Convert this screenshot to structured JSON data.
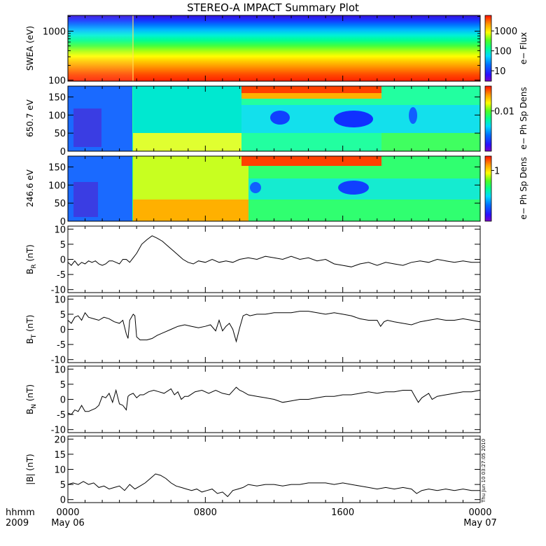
{
  "title": "STEREO-A IMPACT Summary Plot",
  "stamp": "Thu Jun 10 03:27:05 2010",
  "time_axis": {
    "label_line1": "hhmm",
    "label_line2": "2009",
    "ticks": [
      {
        "hour": 0,
        "label": "0000",
        "date": "May 06"
      },
      {
        "hour": 8,
        "label": "0800",
        "date": ""
      },
      {
        "hour": 16,
        "label": "1600",
        "date": ""
      },
      {
        "hour": 24,
        "label": "0000",
        "date": "May 07"
      }
    ],
    "range_hours": [
      0,
      24
    ]
  },
  "chart_data": [
    {
      "type": "heatmap",
      "name": "swea-spectrogram",
      "ylabel": "SWEA (eV)",
      "ylog": true,
      "ylim": [
        95,
        2100
      ],
      "yticks": [
        {
          "v": 100,
          "t": "100"
        },
        {
          "v": 1000,
          "t": "1000"
        }
      ],
      "colorbar": {
        "label": "e− Flux",
        "log": true,
        "range": [
          3,
          6000
        ],
        "ticks": [
          {
            "v": 10,
            "t": "10"
          },
          {
            "v": 100,
            "t": "100"
          },
          {
            "v": 1000,
            "t": "1000"
          }
        ]
      },
      "bands_bottom_to_top": [
        "#ff3000",
        "#ff5000",
        "#ff8000",
        "#ffb000",
        "#ffe000",
        "#d8ff00",
        "#90ff10",
        "#40ff40",
        "#00ff70",
        "#00ffb0",
        "#00e8e8",
        "#00c0ff",
        "#0090ff",
        "#0050ff",
        "#1010ff",
        "#3000e0"
      ]
    },
    {
      "type": "heatmap",
      "name": "pad-650",
      "ylabel": "650.7 eV",
      "ylim": [
        0,
        180
      ],
      "yticks": [
        {
          "v": 0,
          "t": "0"
        },
        {
          "v": 50,
          "t": "50"
        },
        {
          "v": 100,
          "t": "100"
        },
        {
          "v": 150,
          "t": "150"
        }
      ],
      "colorbar": {
        "label": "e− Ph Sp Dens",
        "log": true,
        "ticks": [
          {
            "v": 0.62,
            "t": "0.01"
          }
        ]
      }
    },
    {
      "type": "heatmap",
      "name": "pad-246",
      "ylabel": "246.6 eV",
      "ylim": [
        0,
        180
      ],
      "yticks": [
        {
          "v": 0,
          "t": "0"
        },
        {
          "v": 50,
          "t": "50"
        },
        {
          "v": 100,
          "t": "100"
        },
        {
          "v": 150,
          "t": "150"
        }
      ],
      "colorbar": {
        "label": "e− Ph Sp Dens",
        "log": true,
        "ticks": [
          {
            "v": 0.78,
            "t": "1"
          }
        ]
      }
    },
    {
      "type": "line",
      "name": "br",
      "ylabel": "B",
      "ylabel_sub": "R",
      "ylabel_unit": "(nT)",
      "ylim": [
        -11,
        11
      ],
      "yticks": [
        -10,
        -5,
        0,
        5,
        10
      ],
      "x_hours": [
        0,
        0.2,
        0.4,
        0.6,
        0.8,
        1.0,
        1.2,
        1.4,
        1.6,
        1.8,
        2.0,
        2.2,
        2.4,
        2.6,
        2.8,
        3.0,
        3.2,
        3.4,
        3.6,
        3.8,
        4.0,
        4.3,
        4.6,
        4.9,
        5.2,
        5.5,
        5.8,
        6.1,
        6.4,
        6.7,
        7.0,
        7.3,
        7.6,
        8.0,
        8.4,
        8.8,
        9.2,
        9.6,
        10.0,
        10.5,
        11.0,
        11.5,
        12.0,
        12.5,
        13.0,
        13.5,
        14.0,
        14.5,
        15.0,
        15.5,
        16.0,
        16.5,
        17.0,
        17.5,
        18.0,
        18.5,
        19.0,
        19.5,
        20.0,
        20.5,
        21.0,
        21.5,
        22.0,
        22.5,
        23.0,
        23.5,
        24.0
      ],
      "values": [
        -1.0,
        -2.0,
        -0.5,
        -2.0,
        -1.0,
        -1.5,
        -0.5,
        -1.0,
        -0.5,
        -1.5,
        -2.0,
        -1.5,
        -0.5,
        -0.5,
        -1.0,
        -1.5,
        0.0,
        0.0,
        -1.0,
        0.5,
        2.0,
        5.0,
        6.5,
        7.8,
        7.0,
        6.0,
        4.5,
        3.0,
        1.5,
        0.0,
        -1.0,
        -1.5,
        -0.5,
        -1.0,
        0.0,
        -1.0,
        -0.5,
        -1.0,
        0.0,
        0.5,
        0.0,
        1.0,
        0.5,
        0.0,
        1.0,
        0.0,
        0.5,
        -0.5,
        0.0,
        -1.5,
        -2.0,
        -2.5,
        -1.5,
        -1.0,
        -2.0,
        -1.0,
        -1.5,
        -2.0,
        -1.0,
        -0.5,
        -1.0,
        0.0,
        -0.5,
        -1.0,
        -0.5,
        -1.0,
        -1.0
      ]
    },
    {
      "type": "line",
      "name": "bt",
      "ylabel": "B",
      "ylabel_sub": "T",
      "ylabel_unit": "(nT)",
      "ylim": [
        -11,
        11
      ],
      "yticks": [
        -10,
        -5,
        0,
        5,
        10
      ],
      "x_hours": [
        0,
        0.2,
        0.4,
        0.6,
        0.8,
        1.0,
        1.2,
        1.5,
        1.8,
        2.1,
        2.4,
        2.7,
        3.0,
        3.2,
        3.4,
        3.5,
        3.6,
        3.8,
        3.9,
        4.0,
        4.2,
        4.4,
        4.6,
        4.9,
        5.2,
        5.6,
        6.0,
        6.4,
        6.8,
        7.2,
        7.6,
        8.0,
        8.3,
        8.6,
        8.8,
        9.0,
        9.2,
        9.4,
        9.6,
        9.8,
        10.0,
        10.2,
        10.4,
        10.6,
        11.0,
        11.5,
        12.0,
        12.5,
        13.0,
        13.5,
        14.0,
        14.5,
        15.0,
        15.5,
        16.0,
        16.5,
        17.0,
        17.5,
        18.0,
        18.2,
        18.4,
        18.6,
        19.0,
        19.5,
        20.0,
        20.5,
        21.0,
        21.5,
        22.0,
        22.5,
        23.0,
        23.5,
        24.0
      ],
      "values": [
        3.0,
        2.0,
        4.0,
        4.5,
        3.0,
        5.5,
        4.0,
        3.5,
        3.0,
        4.0,
        3.5,
        2.5,
        2.0,
        3.0,
        -1.5,
        -3.0,
        3.0,
        5.0,
        4.5,
        -2.5,
        -3.5,
        -3.5,
        -3.5,
        -3.0,
        -2.0,
        -1.0,
        0.0,
        1.0,
        1.5,
        1.0,
        0.5,
        1.0,
        1.5,
        -0.5,
        3.0,
        -0.5,
        1.0,
        2.0,
        0.0,
        -4.0,
        0.5,
        4.5,
        5.0,
        4.5,
        5.0,
        5.0,
        5.5,
        5.5,
        5.5,
        6.0,
        6.0,
        5.5,
        5.0,
        5.5,
        5.0,
        4.5,
        3.5,
        3.0,
        3.0,
        1.0,
        2.5,
        3.0,
        2.5,
        2.0,
        1.5,
        2.5,
        3.0,
        3.5,
        3.0,
        3.0,
        3.5,
        3.0,
        2.5
      ]
    },
    {
      "type": "line",
      "name": "bn",
      "ylabel": "B",
      "ylabel_sub": "N",
      "ylabel_unit": "(nT)",
      "ylim": [
        -11,
        11
      ],
      "yticks": [
        -10,
        -5,
        0,
        5,
        10
      ],
      "x_hours": [
        0,
        0.2,
        0.4,
        0.6,
        0.8,
        1.0,
        1.2,
        1.4,
        1.6,
        1.8,
        2.0,
        2.2,
        2.4,
        2.6,
        2.8,
        3.0,
        3.2,
        3.4,
        3.5,
        3.6,
        3.8,
        4.0,
        4.2,
        4.4,
        4.7,
        5.0,
        5.3,
        5.6,
        6.0,
        6.2,
        6.4,
        6.6,
        6.8,
        7.0,
        7.4,
        7.8,
        8.2,
        8.6,
        9.0,
        9.4,
        9.8,
        10.0,
        10.2,
        10.5,
        11.0,
        11.5,
        12.0,
        12.5,
        13.0,
        13.5,
        14.0,
        14.5,
        15.0,
        15.5,
        16.0,
        16.5,
        17.0,
        17.5,
        18.0,
        18.5,
        19.0,
        19.5,
        20.0,
        20.2,
        20.4,
        20.6,
        21.0,
        21.2,
        21.5,
        22.0,
        22.5,
        23.0,
        23.5,
        24.0
      ],
      "values": [
        -4.5,
        -5.0,
        -3.5,
        -4.0,
        -2.0,
        -4.0,
        -4.0,
        -3.5,
        -3.0,
        -2.0,
        1.0,
        0.5,
        2.0,
        -1.0,
        3.0,
        -1.5,
        -2.0,
        -3.5,
        1.0,
        1.5,
        2.0,
        0.5,
        1.5,
        1.5,
        2.5,
        3.0,
        2.5,
        2.0,
        3.5,
        1.5,
        2.5,
        0.0,
        1.0,
        1.0,
        2.5,
        3.0,
        2.0,
        3.0,
        2.0,
        1.5,
        4.0,
        3.0,
        2.5,
        1.5,
        1.0,
        0.5,
        0.0,
        -1.0,
        -0.5,
        0.0,
        0.0,
        0.5,
        1.0,
        1.0,
        1.5,
        1.5,
        2.0,
        2.5,
        2.0,
        2.5,
        2.5,
        3.0,
        3.0,
        1.0,
        -1.0,
        0.5,
        2.0,
        0.0,
        1.0,
        1.5,
        2.0,
        2.5,
        2.5,
        3.0
      ]
    },
    {
      "type": "line",
      "name": "bmag",
      "ylabel": "|B|",
      "ylabel_sub": "",
      "ylabel_unit": "(nT)",
      "ylim": [
        -1,
        21
      ],
      "yticks": [
        0,
        5,
        10,
        15,
        20
      ],
      "x_hours": [
        0,
        0.3,
        0.6,
        0.9,
        1.2,
        1.5,
        1.8,
        2.1,
        2.4,
        2.7,
        3.0,
        3.3,
        3.6,
        3.9,
        4.2,
        4.5,
        4.8,
        5.1,
        5.4,
        5.7,
        6.0,
        6.3,
        6.6,
        6.9,
        7.2,
        7.5,
        7.8,
        8.1,
        8.4,
        8.7,
        9.0,
        9.3,
        9.6,
        9.9,
        10.2,
        10.5,
        11.0,
        11.5,
        12.0,
        12.5,
        13.0,
        13.5,
        14.0,
        14.5,
        15.0,
        15.5,
        16.0,
        16.5,
        17.0,
        17.5,
        18.0,
        18.5,
        19.0,
        19.5,
        20.0,
        20.3,
        20.6,
        21.0,
        21.5,
        22.0,
        22.5,
        23.0,
        23.5,
        24.0
      ],
      "values": [
        5.0,
        5.5,
        5.0,
        6.0,
        5.0,
        5.5,
        4.0,
        4.5,
        3.5,
        4.0,
        4.5,
        3.0,
        5.0,
        3.5,
        4.5,
        5.5,
        7.0,
        8.5,
        8.0,
        7.0,
        5.5,
        4.5,
        4.0,
        3.5,
        3.0,
        3.5,
        2.5,
        3.0,
        3.5,
        2.0,
        2.5,
        1.0,
        3.0,
        3.5,
        4.0,
        5.0,
        4.5,
        5.0,
        5.0,
        4.5,
        5.0,
        5.0,
        5.5,
        5.5,
        5.5,
        5.0,
        5.5,
        5.0,
        4.5,
        4.0,
        3.5,
        4.0,
        3.5,
        4.0,
        3.5,
        2.0,
        3.0,
        3.5,
        3.0,
        3.5,
        3.0,
        3.5,
        3.0,
        3.0
      ]
    }
  ]
}
